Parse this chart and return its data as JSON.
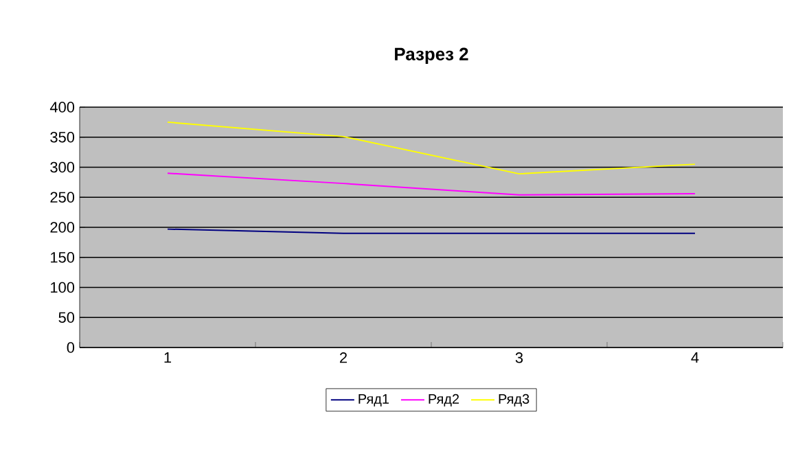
{
  "chart_data": {
    "type": "line",
    "title": "Разрез 2",
    "categories": [
      "1",
      "2",
      "3",
      "4"
    ],
    "series": [
      {
        "name": "Ряд1",
        "color": "#000080",
        "values": [
          197,
          190,
          190,
          190
        ]
      },
      {
        "name": "Ряд2",
        "color": "#ff00ff",
        "values": [
          290,
          273,
          254,
          256
        ]
      },
      {
        "name": "Ряд3",
        "color": "#ffff00",
        "values": [
          375,
          351,
          289,
          305
        ]
      }
    ],
    "ylim": [
      0,
      400
    ],
    "yticks": [
      0,
      50,
      100,
      150,
      200,
      250,
      300,
      350,
      400
    ],
    "grid": "y",
    "legend": "bottom",
    "marker": "none",
    "line_style": "solid"
  }
}
